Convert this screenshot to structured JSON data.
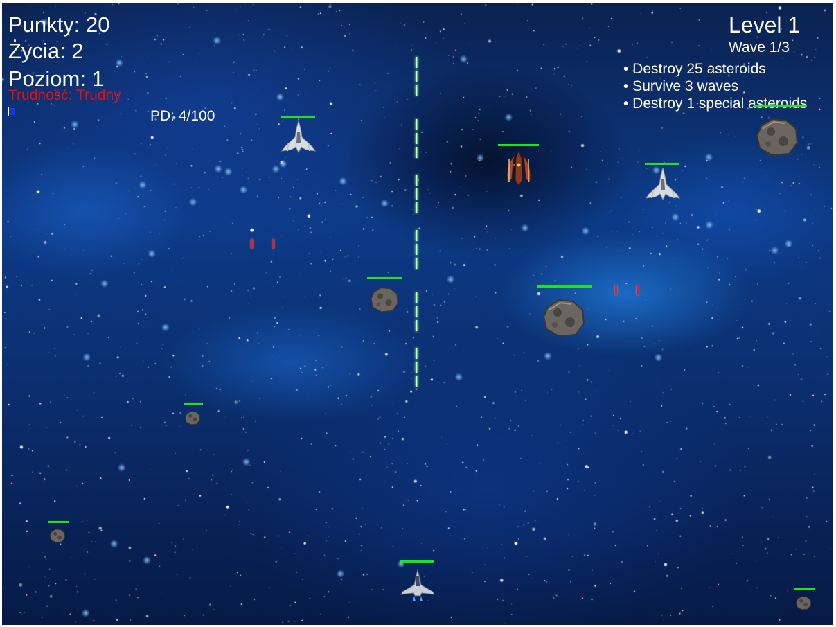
{
  "hud": {
    "score": "Punkty: 20",
    "lives": "Życia: 2",
    "level": "Poziom: 1",
    "difficulty": "Trudność: Trudny",
    "pd_text": "PD: 4/100",
    "pd_progress": 0.04
  },
  "mission": {
    "title": "Level 1",
    "wave": "Wave 1/3",
    "objectives": [
      "• Destroy 25 asteroids",
      "• Survive 3 waves",
      "• Destroy 1 special asteroids"
    ]
  },
  "colors": {
    "health_bar": "#19e619",
    "laser": "#2ee62e",
    "enemy_bullet": "#e02020",
    "difficulty_text": "#e01010",
    "xp_fill": "#1a33e6"
  },
  "entities": {
    "player": {
      "icon": "player-ship-icon",
      "health": 1.0
    },
    "enemies": [
      {
        "icon": "white-fighter-icon",
        "health": 1.0
      },
      {
        "icon": "red-cruiser-icon",
        "health": 1.0
      },
      {
        "icon": "white-fighter-icon",
        "health": 1.0
      }
    ],
    "asteroids": [
      {
        "icon": "asteroid-icon",
        "health": 1.0
      },
      {
        "icon": "asteroid-icon",
        "health": 1.0
      },
      {
        "icon": "asteroid-icon",
        "health": 1.0
      },
      {
        "icon": "asteroid-icon",
        "health": 1.0
      },
      {
        "icon": "asteroid-icon",
        "health": 1.0
      },
      {
        "icon": "asteroid-icon",
        "health": 1.0
      }
    ]
  }
}
